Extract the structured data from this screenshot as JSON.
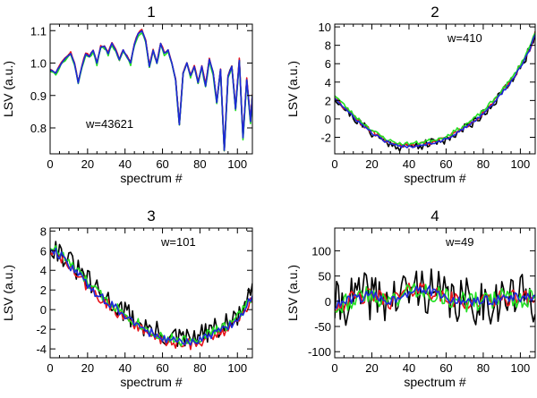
{
  "colors": {
    "black": "#000000",
    "red": "#e8141b",
    "green": "#22e022",
    "blue": "#1c28d8"
  },
  "chart_data": [
    {
      "type": "line",
      "title": "1",
      "xlabel": "spectrum #",
      "ylabel": "LSV (a.u.)",
      "annotation": "w=43621",
      "xlim": [
        0,
        108
      ],
      "ylim": [
        0.72,
        1.12
      ],
      "xticks": [
        0,
        20,
        40,
        60,
        80,
        100
      ],
      "yticks": [
        0.8,
        0.9,
        1.0,
        1.1
      ],
      "ytick_labels": [
        "0.8",
        "0.9",
        "1.0",
        "1.1"
      ],
      "base": [
        [
          0,
          0.98
        ],
        [
          3,
          0.97
        ],
        [
          6,
          1.0
        ],
        [
          9,
          1.02
        ],
        [
          11,
          1.03
        ],
        [
          13,
          1.0
        ],
        [
          15,
          0.94
        ],
        [
          17,
          0.99
        ],
        [
          19,
          1.03
        ],
        [
          21,
          1.02
        ],
        [
          23,
          1.04
        ],
        [
          25,
          1.0
        ],
        [
          27,
          1.05
        ],
        [
          29,
          1.05
        ],
        [
          31,
          1.03
        ],
        [
          33,
          1.06
        ],
        [
          35,
          1.04
        ],
        [
          37,
          1.01
        ],
        [
          39,
          1.04
        ],
        [
          41,
          1.02
        ],
        [
          43,
          1.0
        ],
        [
          45,
          1.06
        ],
        [
          47,
          1.09
        ],
        [
          49,
          1.1
        ],
        [
          51,
          1.07
        ],
        [
          53,
          0.99
        ],
        [
          55,
          1.04
        ],
        [
          57,
          1.0
        ],
        [
          59,
          1.06
        ],
        [
          61,
          1.03
        ],
        [
          63,
          1.04
        ],
        [
          65,
          1.0
        ],
        [
          67,
          0.95
        ],
        [
          69,
          0.81
        ],
        [
          71,
          0.97
        ],
        [
          73,
          1.0
        ],
        [
          75,
          0.96
        ],
        [
          77,
          0.99
        ],
        [
          79,
          0.94
        ],
        [
          81,
          0.99
        ],
        [
          83,
          0.93
        ],
        [
          85,
          1.01
        ],
        [
          87,
          0.97
        ],
        [
          89,
          0.88
        ],
        [
          91,
          0.98
        ],
        [
          93,
          0.73
        ],
        [
          95,
          0.96
        ],
        [
          97,
          0.99
        ],
        [
          99,
          0.86
        ],
        [
          101,
          1.01
        ],
        [
          103,
          0.77
        ],
        [
          105,
          0.95
        ],
        [
          107,
          0.82
        ],
        [
          108,
          0.9
        ]
      ],
      "series": [
        {
          "name": "black",
          "color": "#000000",
          "noise": 0.003,
          "offset": 0,
          "seed": 11
        },
        {
          "name": "red",
          "color": "#e8141b",
          "noise": 0.003,
          "offset": 0.002,
          "seed": 12
        },
        {
          "name": "green",
          "color": "#22e022",
          "noise": 0.004,
          "offset": -0.004,
          "seed": 13
        },
        {
          "name": "blue",
          "color": "#1c28d8",
          "noise": 0.002,
          "offset": 0,
          "seed": 14
        }
      ]
    },
    {
      "type": "line",
      "title": "2",
      "xlabel": "spectrum #",
      "ylabel": "LSV (a.u.)",
      "annotation": "w=410",
      "xlim": [
        0,
        108
      ],
      "ylim": [
        -3.8,
        10.3
      ],
      "xticks": [
        0,
        20,
        40,
        60,
        80,
        100
      ],
      "yticks": [
        -2,
        0,
        2,
        4,
        6,
        8,
        10
      ],
      "ytick_labels": [
        "-2",
        "0",
        "2",
        "4",
        "6",
        "8",
        "10"
      ],
      "base": [
        [
          0,
          2.3
        ],
        [
          5,
          1.2
        ],
        [
          10,
          0.2
        ],
        [
          15,
          -0.7
        ],
        [
          20,
          -1.5
        ],
        [
          25,
          -2.2
        ],
        [
          30,
          -2.7
        ],
        [
          35,
          -3.0
        ],
        [
          40,
          -3.0
        ],
        [
          45,
          -2.9
        ],
        [
          50,
          -2.7
        ],
        [
          55,
          -2.5
        ],
        [
          60,
          -2.2
        ],
        [
          65,
          -1.6
        ],
        [
          70,
          -1.0
        ],
        [
          75,
          -0.3
        ],
        [
          80,
          0.6
        ],
        [
          85,
          1.6
        ],
        [
          90,
          2.8
        ],
        [
          95,
          4.0
        ],
        [
          100,
          5.6
        ],
        [
          105,
          7.5
        ],
        [
          108,
          9.2
        ]
      ],
      "series": [
        {
          "name": "black",
          "color": "#000000",
          "noise": 0.5,
          "offset": 0,
          "seed": 21
        },
        {
          "name": "red",
          "color": "#e8141b",
          "noise": 0.25,
          "offset": 0.1,
          "seed": 22
        },
        {
          "name": "green",
          "color": "#22e022",
          "noise": 0.2,
          "offset": 0.3,
          "seed": 23
        },
        {
          "name": "blue",
          "color": "#1c28d8",
          "noise": 0.15,
          "offset": 0,
          "seed": 24
        }
      ]
    },
    {
      "type": "line",
      "title": "3",
      "xlabel": "spectrum #",
      "ylabel": "LSV (a.u.)",
      "annotation": "w=101",
      "xlim": [
        0,
        108
      ],
      "ylim": [
        -4.9,
        8.3
      ],
      "xticks": [
        0,
        20,
        40,
        60,
        80,
        100
      ],
      "yticks": [
        -4,
        -2,
        0,
        2,
        4,
        6,
        8
      ],
      "ytick_labels": [
        "-4",
        "-2",
        "0",
        "2",
        "4",
        "6",
        "8"
      ],
      "base": [
        [
          0,
          6.3
        ],
        [
          5,
          5.6
        ],
        [
          10,
          4.6
        ],
        [
          15,
          3.6
        ],
        [
          20,
          2.6
        ],
        [
          25,
          1.6
        ],
        [
          30,
          0.8
        ],
        [
          35,
          0.1
        ],
        [
          40,
          -0.6
        ],
        [
          45,
          -1.3
        ],
        [
          50,
          -2.0
        ],
        [
          55,
          -2.5
        ],
        [
          60,
          -2.9
        ],
        [
          65,
          -3.2
        ],
        [
          70,
          -3.4
        ],
        [
          75,
          -3.3
        ],
        [
          80,
          -3.0
        ],
        [
          85,
          -2.6
        ],
        [
          90,
          -2.2
        ],
        [
          95,
          -1.8
        ],
        [
          100,
          -1.0
        ],
        [
          105,
          0.4
        ],
        [
          108,
          1.3
        ]
      ],
      "series": [
        {
          "name": "black",
          "color": "#000000",
          "noise": 1.2,
          "offset": 0.3,
          "seed": 31
        },
        {
          "name": "red",
          "color": "#e8141b",
          "noise": 0.6,
          "offset": -0.2,
          "seed": 32
        },
        {
          "name": "green",
          "color": "#22e022",
          "noise": 0.55,
          "offset": 0.2,
          "seed": 33
        },
        {
          "name": "blue",
          "color": "#1c28d8",
          "noise": 0.45,
          "offset": 0,
          "seed": 34
        }
      ]
    },
    {
      "type": "line",
      "title": "4",
      "xlabel": "spectrum #",
      "ylabel": "LSV (a.u.)",
      "annotation": "w=49",
      "xlim": [
        0,
        108
      ],
      "ylim": [
        -112,
        145
      ],
      "xticks": [
        0,
        20,
        40,
        60,
        80,
        100
      ],
      "yticks": [
        -100,
        -50,
        0,
        50,
        100
      ],
      "ytick_labels": [
        "-100",
        "-50",
        "0",
        "50",
        "100"
      ],
      "base": [
        [
          0,
          -10
        ],
        [
          10,
          5
        ],
        [
          20,
          12
        ],
        [
          30,
          0
        ],
        [
          40,
          20
        ],
        [
          45,
          28
        ],
        [
          50,
          22
        ],
        [
          60,
          5
        ],
        [
          70,
          -2
        ],
        [
          80,
          0
        ],
        [
          90,
          5
        ],
        [
          100,
          8
        ],
        [
          108,
          5
        ]
      ],
      "series": [
        {
          "name": "black",
          "color": "#000000",
          "noise": 48,
          "offset": 0,
          "seed": 41
        },
        {
          "name": "red",
          "color": "#e8141b",
          "noise": 16,
          "offset": 0,
          "seed": 42
        },
        {
          "name": "green",
          "color": "#22e022",
          "noise": 20,
          "offset": 0,
          "seed": 43
        },
        {
          "name": "blue",
          "color": "#1c28d8",
          "noise": 10,
          "offset": 0,
          "seed": 44
        }
      ]
    }
  ]
}
